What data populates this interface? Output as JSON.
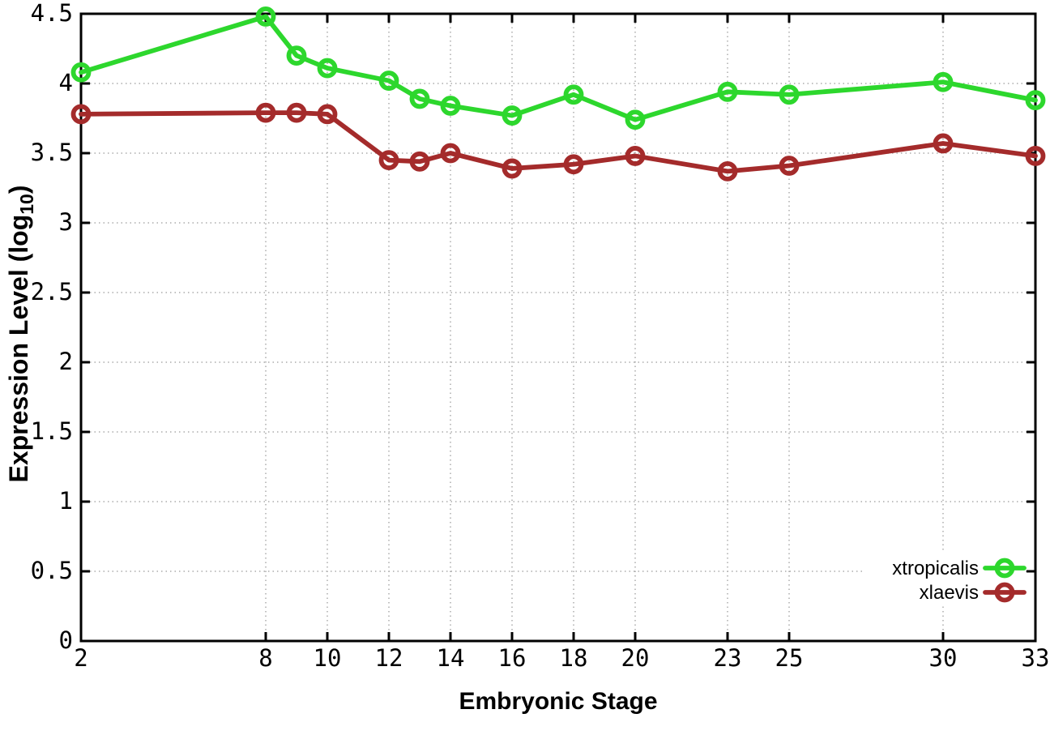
{
  "figure": {
    "background": "#ffffff",
    "axis_color": "#000000",
    "grid_color": "#ababab"
  },
  "chart_data": {
    "type": "line",
    "title": "",
    "xlabel": "Embryonic Stage",
    "ylabel": "Expression Level (log10)",
    "ylabel_parts": {
      "prefix": "Expression Level (log",
      "sub": "10",
      "suffix": ")"
    },
    "x": [
      2,
      8,
      9,
      10,
      12,
      13,
      14,
      16,
      18,
      20,
      23,
      25,
      30,
      33
    ],
    "series": [
      {
        "name": "xtropicalis",
        "color": "#2dd72d",
        "marker": "open-circle",
        "values": [
          4.08,
          4.48,
          4.2,
          4.11,
          4.02,
          3.89,
          3.84,
          3.77,
          3.92,
          3.74,
          3.94,
          3.92,
          4.01,
          3.88
        ]
      },
      {
        "name": "xlaevis",
        "color": "#a42b2b",
        "marker": "open-circle",
        "values": [
          3.78,
          3.79,
          3.79,
          3.78,
          3.45,
          3.44,
          3.5,
          3.39,
          3.42,
          3.48,
          3.37,
          3.41,
          3.57,
          3.48
        ]
      }
    ],
    "xticks": [
      2,
      8,
      10,
      12,
      14,
      16,
      18,
      20,
      23,
      25,
      30,
      33
    ],
    "yticks": [
      0,
      0.5,
      1,
      1.5,
      2,
      2.5,
      3,
      3.5,
      4,
      4.5
    ],
    "xlim": [
      2,
      33
    ],
    "ylim": [
      0,
      4.5
    ],
    "grid": true,
    "legend_position": "bottom-right",
    "legend_entries": [
      "xtropicalis",
      "xlaevis"
    ]
  }
}
